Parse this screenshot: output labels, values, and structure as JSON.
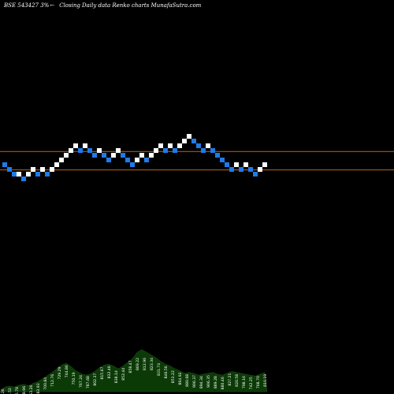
{
  "header": {
    "symbol": "BSE 543427 3%",
    "arrow": "←",
    "caption": "Closing Daily data  Renko  charts MunafaSutra.com"
  },
  "colors": {
    "background": "#000000",
    "up_brick": "#ffffff",
    "down_brick": "#1e7bea",
    "level_line": "#b8651b",
    "volume_fill": "#0b3a07",
    "volume_text": "#ffffff"
  },
  "chart_data": {
    "type": "renko",
    "box_size_pct": 3,
    "bricks": [
      {
        "dir": "down",
        "level": 0
      },
      {
        "dir": "down",
        "level": -1
      },
      {
        "dir": "down",
        "level": -2
      },
      {
        "dir": "up",
        "level": -2
      },
      {
        "dir": "down",
        "level": -3
      },
      {
        "dir": "up",
        "level": -2
      },
      {
        "dir": "up",
        "level": -1
      },
      {
        "dir": "down",
        "level": -2
      },
      {
        "dir": "up",
        "level": -1
      },
      {
        "dir": "down",
        "level": -2
      },
      {
        "dir": "up",
        "level": -1
      },
      {
        "dir": "up",
        "level": 0
      },
      {
        "dir": "up",
        "level": 1
      },
      {
        "dir": "up",
        "level": 2
      },
      {
        "dir": "up",
        "level": 3
      },
      {
        "dir": "up",
        "level": 4
      },
      {
        "dir": "down",
        "level": 3
      },
      {
        "dir": "up",
        "level": 4
      },
      {
        "dir": "down",
        "level": 3
      },
      {
        "dir": "down",
        "level": 2
      },
      {
        "dir": "up",
        "level": 3
      },
      {
        "dir": "down",
        "level": 2
      },
      {
        "dir": "down",
        "level": 1
      },
      {
        "dir": "up",
        "level": 2
      },
      {
        "dir": "up",
        "level": 3
      },
      {
        "dir": "down",
        "level": 2
      },
      {
        "dir": "down",
        "level": 1
      },
      {
        "dir": "down",
        "level": 0
      },
      {
        "dir": "up",
        "level": 1
      },
      {
        "dir": "up",
        "level": 2
      },
      {
        "dir": "down",
        "level": 1
      },
      {
        "dir": "up",
        "level": 2
      },
      {
        "dir": "up",
        "level": 3
      },
      {
        "dir": "up",
        "level": 4
      },
      {
        "dir": "down",
        "level": 3
      },
      {
        "dir": "up",
        "level": 4
      },
      {
        "dir": "down",
        "level": 3
      },
      {
        "dir": "up",
        "level": 4
      },
      {
        "dir": "up",
        "level": 5
      },
      {
        "dir": "up",
        "level": 6
      },
      {
        "dir": "down",
        "level": 5
      },
      {
        "dir": "down",
        "level": 4
      },
      {
        "dir": "down",
        "level": 3
      },
      {
        "dir": "up",
        "level": 4
      },
      {
        "dir": "down",
        "level": 3
      },
      {
        "dir": "down",
        "level": 2
      },
      {
        "dir": "down",
        "level": 1
      },
      {
        "dir": "down",
        "level": 0
      },
      {
        "dir": "down",
        "level": -1
      },
      {
        "dir": "up",
        "level": 0
      },
      {
        "dir": "down",
        "level": -1
      },
      {
        "dir": "up",
        "level": 0
      },
      {
        "dir": "down",
        "level": -1
      },
      {
        "dir": "down",
        "level": -2
      },
      {
        "dir": "up",
        "level": -1
      },
      {
        "dir": "up",
        "level": 0
      }
    ],
    "levels": [
      {
        "name": "upper",
        "brick_level": 2.8
      },
      {
        "name": "lower",
        "brick_level": -1.1
      }
    ],
    "volume_labels": [
      "791.26",
      "808.52",
      "826.78",
      "648.96",
      "663.26",
      "683.93",
      "700.84",
      "712.76",
      "729.29",
      "744.86",
      "750.19",
      "767.24",
      "787.68",
      "802.37",
      "815.67",
      "832.46",
      "838.14",
      "852.44",
      "858.47",
      "869.22",
      "812.96",
      "823.34",
      "831.74",
      "846.56",
      "853.22",
      "864.92",
      "880.68",
      "906.37",
      "894.34",
      "906.35",
      "889.28",
      "880.46",
      "827.21",
      "820.58",
      "798.16",
      "742.25",
      "768.70",
      "810.19"
    ],
    "volume_profile": [
      0.1,
      0.12,
      0.1,
      0.14,
      0.16,
      0.13,
      0.18,
      0.22,
      0.28,
      0.35,
      0.42,
      0.5,
      0.58,
      0.62,
      0.55,
      0.46,
      0.4,
      0.36,
      0.38,
      0.44,
      0.52,
      0.58,
      0.6,
      0.56,
      0.5,
      0.56,
      0.64,
      0.72,
      0.86,
      0.92,
      0.86,
      0.8,
      0.74,
      0.66,
      0.6,
      0.56,
      0.5,
      0.46,
      0.4,
      0.42,
      0.4,
      0.36,
      0.38,
      0.4,
      0.42,
      0.38,
      0.36,
      0.4,
      0.44,
      0.42,
      0.4,
      0.38,
      0.36,
      0.34,
      0.38,
      0.42
    ]
  }
}
